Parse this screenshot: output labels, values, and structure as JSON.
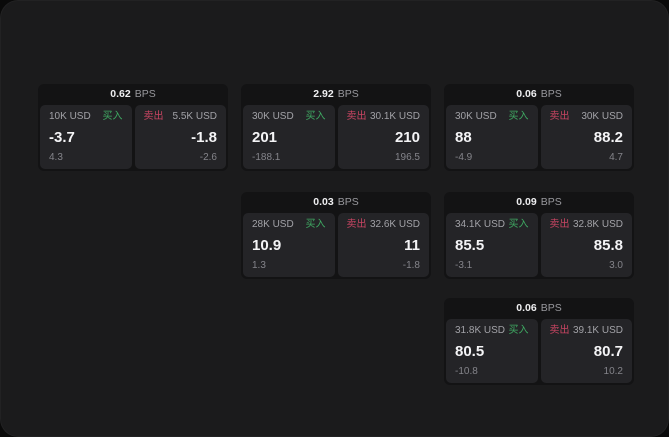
{
  "labels": {
    "bps": "BPS",
    "buy": "买入",
    "sell": "卖出"
  },
  "colors": {
    "buy_green": "#3faa63",
    "sell_red": "#c84562",
    "panel_bg": "#1b1b1c",
    "card_bg": "#131314",
    "cell_bg": "#242427"
  },
  "cards": [
    {
      "bps": "0.62",
      "grid": {
        "row": 1,
        "col": 1
      },
      "buy": {
        "amount": "10K USD",
        "value": "-3.7",
        "sub": "4.3"
      },
      "sell": {
        "amount": "5.5K USD",
        "value": "-1.8",
        "sub": "-2.6"
      }
    },
    {
      "bps": "2.92",
      "grid": {
        "row": 1,
        "col": 2
      },
      "buy": {
        "amount": "30K USD",
        "value": "201",
        "sub": "-188.1"
      },
      "sell": {
        "amount": "30.1K USD",
        "value": "210",
        "sub": "196.5"
      }
    },
    {
      "bps": "0.06",
      "grid": {
        "row": 1,
        "col": 3
      },
      "buy": {
        "amount": "30K USD",
        "value": "88",
        "sub": "-4.9"
      },
      "sell": {
        "amount": "30K USD",
        "value": "88.2",
        "sub": "4.7"
      }
    },
    {
      "bps": "0.03",
      "grid": {
        "row": 2,
        "col": 2
      },
      "buy": {
        "amount": "28K USD",
        "value": "10.9",
        "sub": "1.3"
      },
      "sell": {
        "amount": "32.6K USD",
        "value": "11",
        "sub": "-1.8"
      }
    },
    {
      "bps": "0.09",
      "grid": {
        "row": 2,
        "col": 3
      },
      "buy": {
        "amount": "34.1K USD",
        "value": "85.5",
        "sub": "-3.1"
      },
      "sell": {
        "amount": "32.8K USD",
        "value": "85.8",
        "sub": "3.0"
      }
    },
    {
      "bps": "0.06",
      "grid": {
        "row": 3,
        "col": 3
      },
      "buy": {
        "amount": "31.8K USD",
        "value": "80.5",
        "sub": "-10.8"
      },
      "sell": {
        "amount": "39.1K USD",
        "value": "80.7",
        "sub": "10.2"
      }
    }
  ]
}
